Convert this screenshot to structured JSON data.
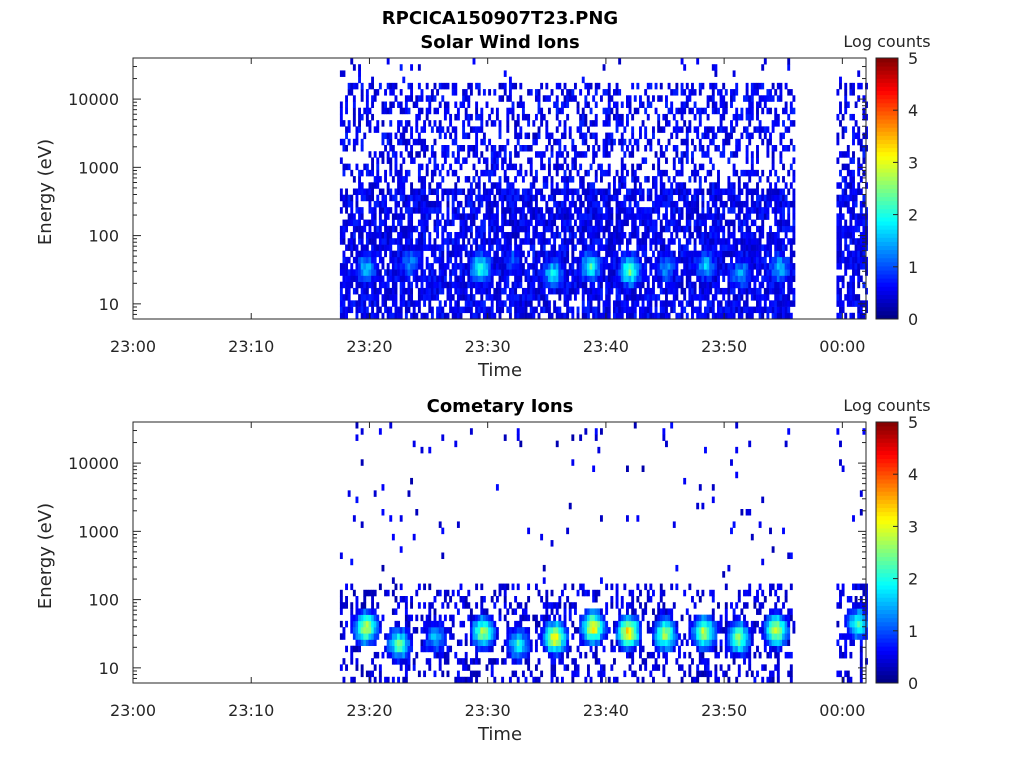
{
  "figure": {
    "filename_title": "RPCICA150907T23.PNG"
  },
  "chart_data": [
    {
      "type": "heatmap",
      "title": "Solar Wind Ions",
      "xlabel": "Time",
      "ylabel": "Energy (eV)",
      "x_range": [
        "23:00",
        "00:02"
      ],
      "y_scale": "log",
      "y_range": [
        6,
        40000
      ],
      "x_ticks": [
        "23:00",
        "23:10",
        "23:20",
        "23:30",
        "23:40",
        "23:50",
        "00:00"
      ],
      "y_ticks": [
        "10",
        "100",
        "1000",
        "10000"
      ],
      "colorbar": {
        "label": "Log counts",
        "range": [
          0,
          5
        ],
        "ticks": [
          "0",
          "1",
          "2",
          "3",
          "4",
          "5"
        ],
        "colormap": "jet"
      },
      "data_intervals_minutes": [
        [
          17.5,
          55.8
        ],
        [
          59.5,
          62.0
        ]
      ],
      "background_level": 0.3,
      "density": {
        "high": 0.75,
        "low": 0.4,
        "split_eV": 400,
        "floor_eV": 6,
        "top_eV": 15000,
        "sparse_above_eV": 15000
      },
      "bursts": [
        {
          "t": 19.6,
          "e": 30,
          "level": 1.8
        },
        {
          "t": 23.3,
          "e": 35,
          "level": 1.5
        },
        {
          "t": 29.3,
          "e": 30,
          "level": 2.4
        },
        {
          "t": 32.0,
          "e": 40,
          "level": 1.2
        },
        {
          "t": 35.4,
          "e": 25,
          "level": 2.0
        },
        {
          "t": 38.6,
          "e": 32,
          "level": 2.2
        },
        {
          "t": 41.9,
          "e": 28,
          "level": 2.6
        },
        {
          "t": 45.0,
          "e": 30,
          "level": 1.5
        },
        {
          "t": 48.3,
          "e": 33,
          "level": 1.8
        },
        {
          "t": 51.3,
          "e": 25,
          "level": 1.6
        },
        {
          "t": 54.6,
          "e": 30,
          "level": 1.8
        }
      ]
    },
    {
      "type": "heatmap",
      "title": "Cometary Ions",
      "xlabel": "Time",
      "ylabel": "Energy (eV)",
      "x_range": [
        "23:00",
        "00:02"
      ],
      "y_scale": "log",
      "y_range": [
        6,
        40000
      ],
      "x_ticks": [
        "23:00",
        "23:10",
        "23:20",
        "23:30",
        "23:40",
        "23:50",
        "00:00"
      ],
      "y_ticks": [
        "10",
        "100",
        "1000",
        "10000"
      ],
      "colorbar": {
        "label": "Log counts",
        "range": [
          0,
          5
        ],
        "ticks": [
          "0",
          "1",
          "2",
          "3",
          "4",
          "5"
        ],
        "colormap": "jet"
      },
      "data_intervals_minutes": [
        [
          17.5,
          55.8
        ],
        [
          59.5,
          62.0
        ]
      ],
      "background_level": 0.2,
      "density": {
        "high": 0.3,
        "low": 0.02,
        "split_eV": 150,
        "floor_eV": 6,
        "top_eV": 12000,
        "sparse_above_eV": 150
      },
      "bursts": [
        {
          "t": 19.6,
          "e": 35,
          "level": 3.2
        },
        {
          "t": 22.4,
          "e": 20,
          "level": 2.6
        },
        {
          "t": 25.5,
          "e": 25,
          "level": 1.8
        },
        {
          "t": 29.5,
          "e": 30,
          "level": 3.0
        },
        {
          "t": 32.5,
          "e": 20,
          "level": 2.2
        },
        {
          "t": 35.6,
          "e": 25,
          "level": 3.4
        },
        {
          "t": 38.8,
          "e": 35,
          "level": 3.5
        },
        {
          "t": 41.8,
          "e": 30,
          "level": 3.6
        },
        {
          "t": 44.9,
          "e": 28,
          "level": 3.0
        },
        {
          "t": 48.2,
          "e": 30,
          "level": 3.1
        },
        {
          "t": 51.1,
          "e": 25,
          "level": 2.9
        },
        {
          "t": 54.3,
          "e": 32,
          "level": 3.2
        },
        {
          "t": 61.2,
          "e": 40,
          "level": 2.4
        }
      ]
    }
  ]
}
